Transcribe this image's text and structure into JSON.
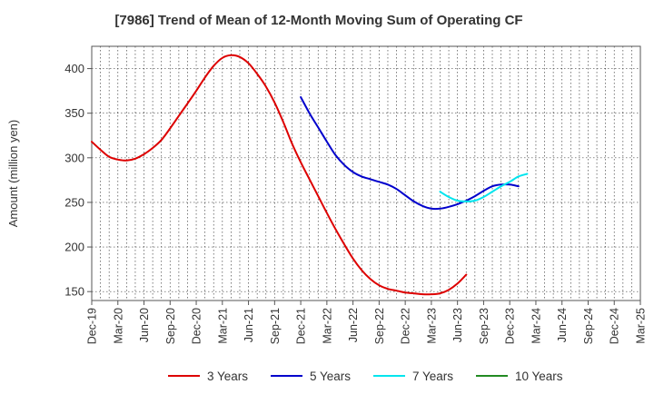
{
  "chart_data": {
    "type": "line",
    "title": "[7986]  Trend of Mean of 12-Month Moving Sum of Operating CF",
    "ylabel": "Amount (million yen)",
    "xlabel": "",
    "ylim": [
      140,
      425
    ],
    "yticks": [
      150,
      200,
      250,
      300,
      350,
      400
    ],
    "x_tick_labels": [
      "Dec-19",
      "Mar-20",
      "Jun-20",
      "Sep-20",
      "Dec-20",
      "Mar-21",
      "Jun-21",
      "Sep-21",
      "Dec-21",
      "Mar-22",
      "Jun-22",
      "Sep-22",
      "Dec-22",
      "Mar-23",
      "Jun-23",
      "Sep-23",
      "Dec-23",
      "Mar-24",
      "Jun-24",
      "Sep-24",
      "Dec-24",
      "Mar-25"
    ],
    "grid": true,
    "legend_position": "bottom",
    "series": [
      {
        "name": "3 Years",
        "color": "#dd0000",
        "points": [
          [
            0,
            318
          ],
          [
            1,
            309
          ],
          [
            2,
            301
          ],
          [
            3,
            298
          ],
          [
            4,
            297
          ],
          [
            5,
            299
          ],
          [
            6,
            304
          ],
          [
            7,
            311
          ],
          [
            8,
            320
          ],
          [
            9,
            333
          ],
          [
            10,
            347
          ],
          [
            11,
            361
          ],
          [
            12,
            375
          ],
          [
            13,
            390
          ],
          [
            14,
            403
          ],
          [
            15,
            412
          ],
          [
            16,
            415
          ],
          [
            17,
            413
          ],
          [
            18,
            406
          ],
          [
            19,
            394
          ],
          [
            20,
            380
          ],
          [
            21,
            362
          ],
          [
            22,
            340
          ],
          [
            23,
            316
          ],
          [
            24,
            295
          ],
          [
            25,
            276
          ],
          [
            26,
            257
          ],
          [
            27,
            238
          ],
          [
            28,
            220
          ],
          [
            29,
            203
          ],
          [
            30,
            187
          ],
          [
            31,
            174
          ],
          [
            32,
            164
          ],
          [
            33,
            157
          ],
          [
            34,
            153
          ],
          [
            35,
            151
          ],
          [
            36,
            149
          ],
          [
            37,
            148
          ],
          [
            38,
            147
          ],
          [
            39,
            147
          ],
          [
            40,
            148
          ],
          [
            41,
            152
          ],
          [
            42,
            159
          ],
          [
            43,
            169
          ]
        ]
      },
      {
        "name": "5 Years",
        "color": "#0000cc",
        "points": [
          [
            24,
            368
          ],
          [
            25,
            350
          ],
          [
            26,
            334
          ],
          [
            27,
            318
          ],
          [
            28,
            303
          ],
          [
            29,
            292
          ],
          [
            30,
            284
          ],
          [
            31,
            279
          ],
          [
            32,
            276
          ],
          [
            33,
            273
          ],
          [
            34,
            270
          ],
          [
            35,
            265
          ],
          [
            36,
            258
          ],
          [
            37,
            251
          ],
          [
            38,
            246
          ],
          [
            39,
            243
          ],
          [
            40,
            243
          ],
          [
            41,
            245
          ],
          [
            42,
            248
          ],
          [
            43,
            252
          ],
          [
            44,
            257
          ],
          [
            45,
            263
          ],
          [
            46,
            268
          ],
          [
            47,
            270
          ],
          [
            48,
            270
          ],
          [
            49,
            268
          ]
        ]
      },
      {
        "name": "7 Years",
        "color": "#00e5ee",
        "points": [
          [
            40,
            262
          ],
          [
            41,
            256
          ],
          [
            42,
            252
          ],
          [
            43,
            251
          ],
          [
            44,
            252
          ],
          [
            45,
            256
          ],
          [
            46,
            262
          ],
          [
            47,
            268
          ],
          [
            48,
            273
          ],
          [
            49,
            279
          ],
          [
            50,
            282
          ]
        ]
      },
      {
        "name": "10 Years",
        "color": "#228B22",
        "points": []
      }
    ]
  }
}
